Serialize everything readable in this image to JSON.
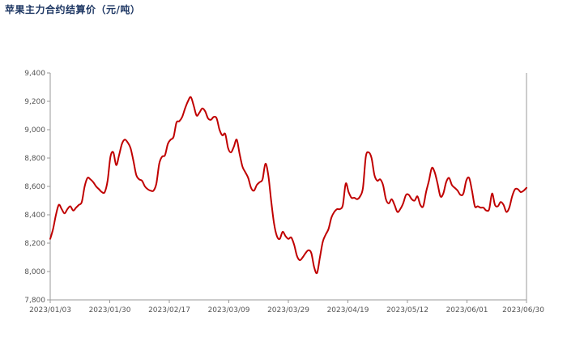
{
  "chart_data": {
    "type": "line",
    "title": "苹果主力合约结算价（元/吨）",
    "xlabel": "",
    "ylabel": "",
    "ylim": [
      7800,
      9400
    ],
    "y_ticks": [
      "7,800",
      "8,000",
      "8,200",
      "8,400",
      "8,600",
      "8,800",
      "9,000",
      "9,200",
      "9,400"
    ],
    "y_tick_values": [
      7800,
      8000,
      8200,
      8400,
      8600,
      8800,
      9000,
      9200,
      9400
    ],
    "x_ticks": [
      "2023/01/03",
      "2023/01/30",
      "2023/02/17",
      "2023/03/09",
      "2023/03/29",
      "2023/04/19",
      "2023/05/12",
      "2023/06/01",
      "2023/06/30"
    ],
    "grid": false,
    "legend": "none",
    "colors": {
      "line": "#c00000",
      "title": "#1f3864",
      "axis": "#999999"
    },
    "series": [
      {
        "values": [
          8230,
          8300,
          8400,
          8470,
          8440,
          8410,
          8440,
          8460,
          8430,
          8450,
          8470,
          8490,
          8600,
          8660,
          8650,
          8630,
          8600,
          8580,
          8560,
          8560,
          8640,
          8810,
          8840,
          8750,
          8820,
          8900,
          8930,
          8910,
          8870,
          8780,
          8680,
          8650,
          8640,
          8600,
          8580,
          8570,
          8570,
          8620,
          8760,
          8810,
          8820,
          8900,
          8930,
          8950,
          9050,
          9060,
          9090,
          9150,
          9200,
          9230,
          9170,
          9100,
          9120,
          9150,
          9130,
          9080,
          9070,
          9090,
          9080,
          9000,
          8960,
          8970,
          8870,
          8840,
          8880,
          8930,
          8830,
          8740,
          8700,
          8660,
          8590,
          8570,
          8610,
          8630,
          8650,
          8760,
          8680,
          8500,
          8340,
          8250,
          8230,
          8280,
          8250,
          8230,
          8240,
          8190,
          8110,
          8080,
          8100,
          8130,
          8150,
          8130,
          8030,
          7990,
          8100,
          8210,
          8260,
          8300,
          8380,
          8420,
          8440,
          8440,
          8470,
          8620,
          8560,
          8520,
          8520,
          8510,
          8530,
          8590,
          8810,
          8840,
          8800,
          8680,
          8640,
          8650,
          8610,
          8510,
          8480,
          8510,
          8470,
          8420,
          8440,
          8480,
          8540,
          8540,
          8510,
          8500,
          8530,
          8470,
          8460,
          8560,
          8640,
          8730,
          8700,
          8620,
          8530,
          8550,
          8630,
          8660,
          8610,
          8590,
          8570,
          8540,
          8550,
          8640,
          8660,
          8570,
          8460,
          8460,
          8450,
          8450,
          8430,
          8440,
          8550,
          8470,
          8460,
          8490,
          8470,
          8420,
          8450,
          8530,
          8580,
          8580,
          8560,
          8570,
          8590
        ]
      }
    ]
  }
}
